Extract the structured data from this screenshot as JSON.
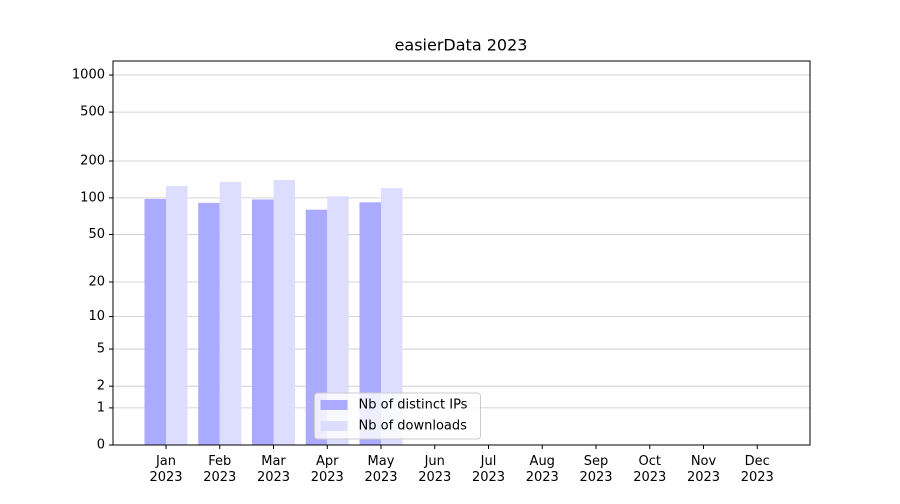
{
  "chart_data": {
    "type": "bar",
    "title": "easierData 2023",
    "categories": [
      "Jan 2023",
      "Feb 2023",
      "Mar 2023",
      "Apr 2023",
      "May 2023",
      "Jun 2023",
      "Jul 2023",
      "Aug 2023",
      "Sep 2023",
      "Oct 2023",
      "Nov 2023",
      "Dec 2023"
    ],
    "series": [
      {
        "name": "Nb of distinct IPs",
        "color": "#aaaaff",
        "values": [
          98,
          91,
          97,
          80,
          92,
          null,
          null,
          null,
          null,
          null,
          null,
          null
        ]
      },
      {
        "name": "Nb of downloads",
        "color": "#ddddff",
        "values": [
          125,
          135,
          140,
          103,
          120,
          null,
          null,
          null,
          null,
          null,
          null,
          null
        ]
      }
    ],
    "yscale": "log1p",
    "ylim": [
      0,
      1300
    ],
    "yticks": [
      0,
      1,
      2,
      5,
      10,
      20,
      50,
      100,
      200,
      500,
      1000
    ],
    "grid": true,
    "legend": "lower center"
  }
}
